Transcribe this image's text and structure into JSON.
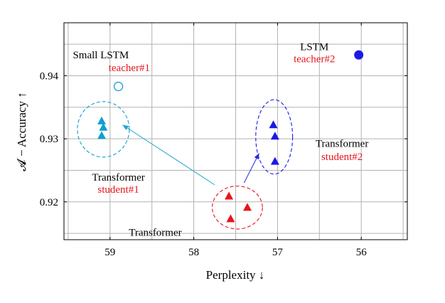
{
  "chart_data": {
    "type": "scatter",
    "xlabel": "Perplexity ↓",
    "ylabel": "𝓐 − Accuracy ↑",
    "x_reversed": true,
    "xlim": [
      59.55,
      55.45
    ],
    "ylim": [
      0.914,
      0.9484
    ],
    "x_ticks": [
      59,
      58,
      57,
      56
    ],
    "y_ticks": [
      0.92,
      0.93,
      0.94
    ],
    "y_tick_labels": [
      "0.92",
      "0.93",
      "0.94"
    ],
    "grid": true,
    "colors": {
      "cyan": "#129fd0",
      "red": "#e8141b",
      "blue": "#1a1ae6",
      "arrow_cyan": "#1fa6cf",
      "arrow_blue": "#2a2ae0"
    },
    "series": [
      {
        "group": "transformer_student1",
        "color": "#129fd0",
        "marker": "triangle",
        "points": [
          {
            "x": 59.1,
            "y": 0.9328
          },
          {
            "x": 59.08,
            "y": 0.9318
          },
          {
            "x": 59.1,
            "y": 0.9305
          }
        ]
      },
      {
        "group": "small_lstm_teacher1",
        "color": "#129fd0",
        "marker": "circle-open",
        "points": [
          {
            "x": 58.9,
            "y": 0.9383
          }
        ]
      },
      {
        "group": "transformer_baseline",
        "color": "#e8141b",
        "marker": "triangle",
        "points": [
          {
            "x": 57.58,
            "y": 0.9209
          },
          {
            "x": 57.36,
            "y": 0.9191
          },
          {
            "x": 57.56,
            "y": 0.9173
          }
        ]
      },
      {
        "group": "transformer_student2",
        "color": "#1a1ae6",
        "marker": "triangle",
        "points": [
          {
            "x": 57.05,
            "y": 0.9322
          },
          {
            "x": 57.03,
            "y": 0.9304
          },
          {
            "x": 57.03,
            "y": 0.9264
          }
        ]
      },
      {
        "group": "lstm_teacher2",
        "color": "#1a1ae6",
        "marker": "circle-filled",
        "points": [
          {
            "x": 56.03,
            "y": 0.9433
          }
        ]
      }
    ],
    "ellipses": [
      {
        "group": "transformer_student1",
        "color": "#129fd0",
        "cx": 59.08,
        "cy": 0.9315,
        "rx": 0.31,
        "ry": 0.0044
      },
      {
        "group": "transformer_baseline",
        "color": "#e8141b",
        "cx": 57.48,
        "cy": 0.9191,
        "rx": 0.3,
        "ry": 0.0034
      },
      {
        "group": "transformer_student2",
        "color": "#1a1ae6",
        "cx": 57.04,
        "cy": 0.9303,
        "rx": 0.22,
        "ry": 0.0059
      }
    ],
    "arrows": [
      {
        "color": "#1fa6cf",
        "from": {
          "x": 57.75,
          "y": 0.9227
        },
        "to": {
          "x": 58.85,
          "y": 0.9322
        }
      },
      {
        "color": "#2a2ae0",
        "from": {
          "x": 57.4,
          "y": 0.923
        },
        "to": {
          "x": 57.22,
          "y": 0.9277
        }
      }
    ],
    "annotations": [
      {
        "id": "small-lstm",
        "text": "Small LSTM",
        "color": "#000000",
        "x": 59.11,
        "y": 0.9433
      },
      {
        "id": "teacher1",
        "text": "teacher#1",
        "color": "#e8141b",
        "x": 58.77,
        "y": 0.9413
      },
      {
        "id": "lstm",
        "text": "LSTM",
        "color": "#000000",
        "x": 56.56,
        "y": 0.9446
      },
      {
        "id": "teacher2",
        "text": "teacher#2",
        "color": "#e8141b",
        "x": 56.56,
        "y": 0.9427
      },
      {
        "id": "transformer-s1",
        "text": "Transformer",
        "color": "#000000",
        "x": 58.9,
        "y": 0.9239
      },
      {
        "id": "student1",
        "text": "student#1",
        "color": "#e8141b",
        "x": 58.9,
        "y": 0.922
      },
      {
        "id": "transformer-s2",
        "text": "Transformer",
        "color": "#000000",
        "x": 56.23,
        "y": 0.9293
      },
      {
        "id": "student2",
        "text": "student#2",
        "color": "#e8141b",
        "x": 56.23,
        "y": 0.9272
      },
      {
        "id": "transformer-base",
        "text": "Transformer",
        "color": "#000000",
        "x": 58.46,
        "y": 0.9152
      }
    ]
  }
}
